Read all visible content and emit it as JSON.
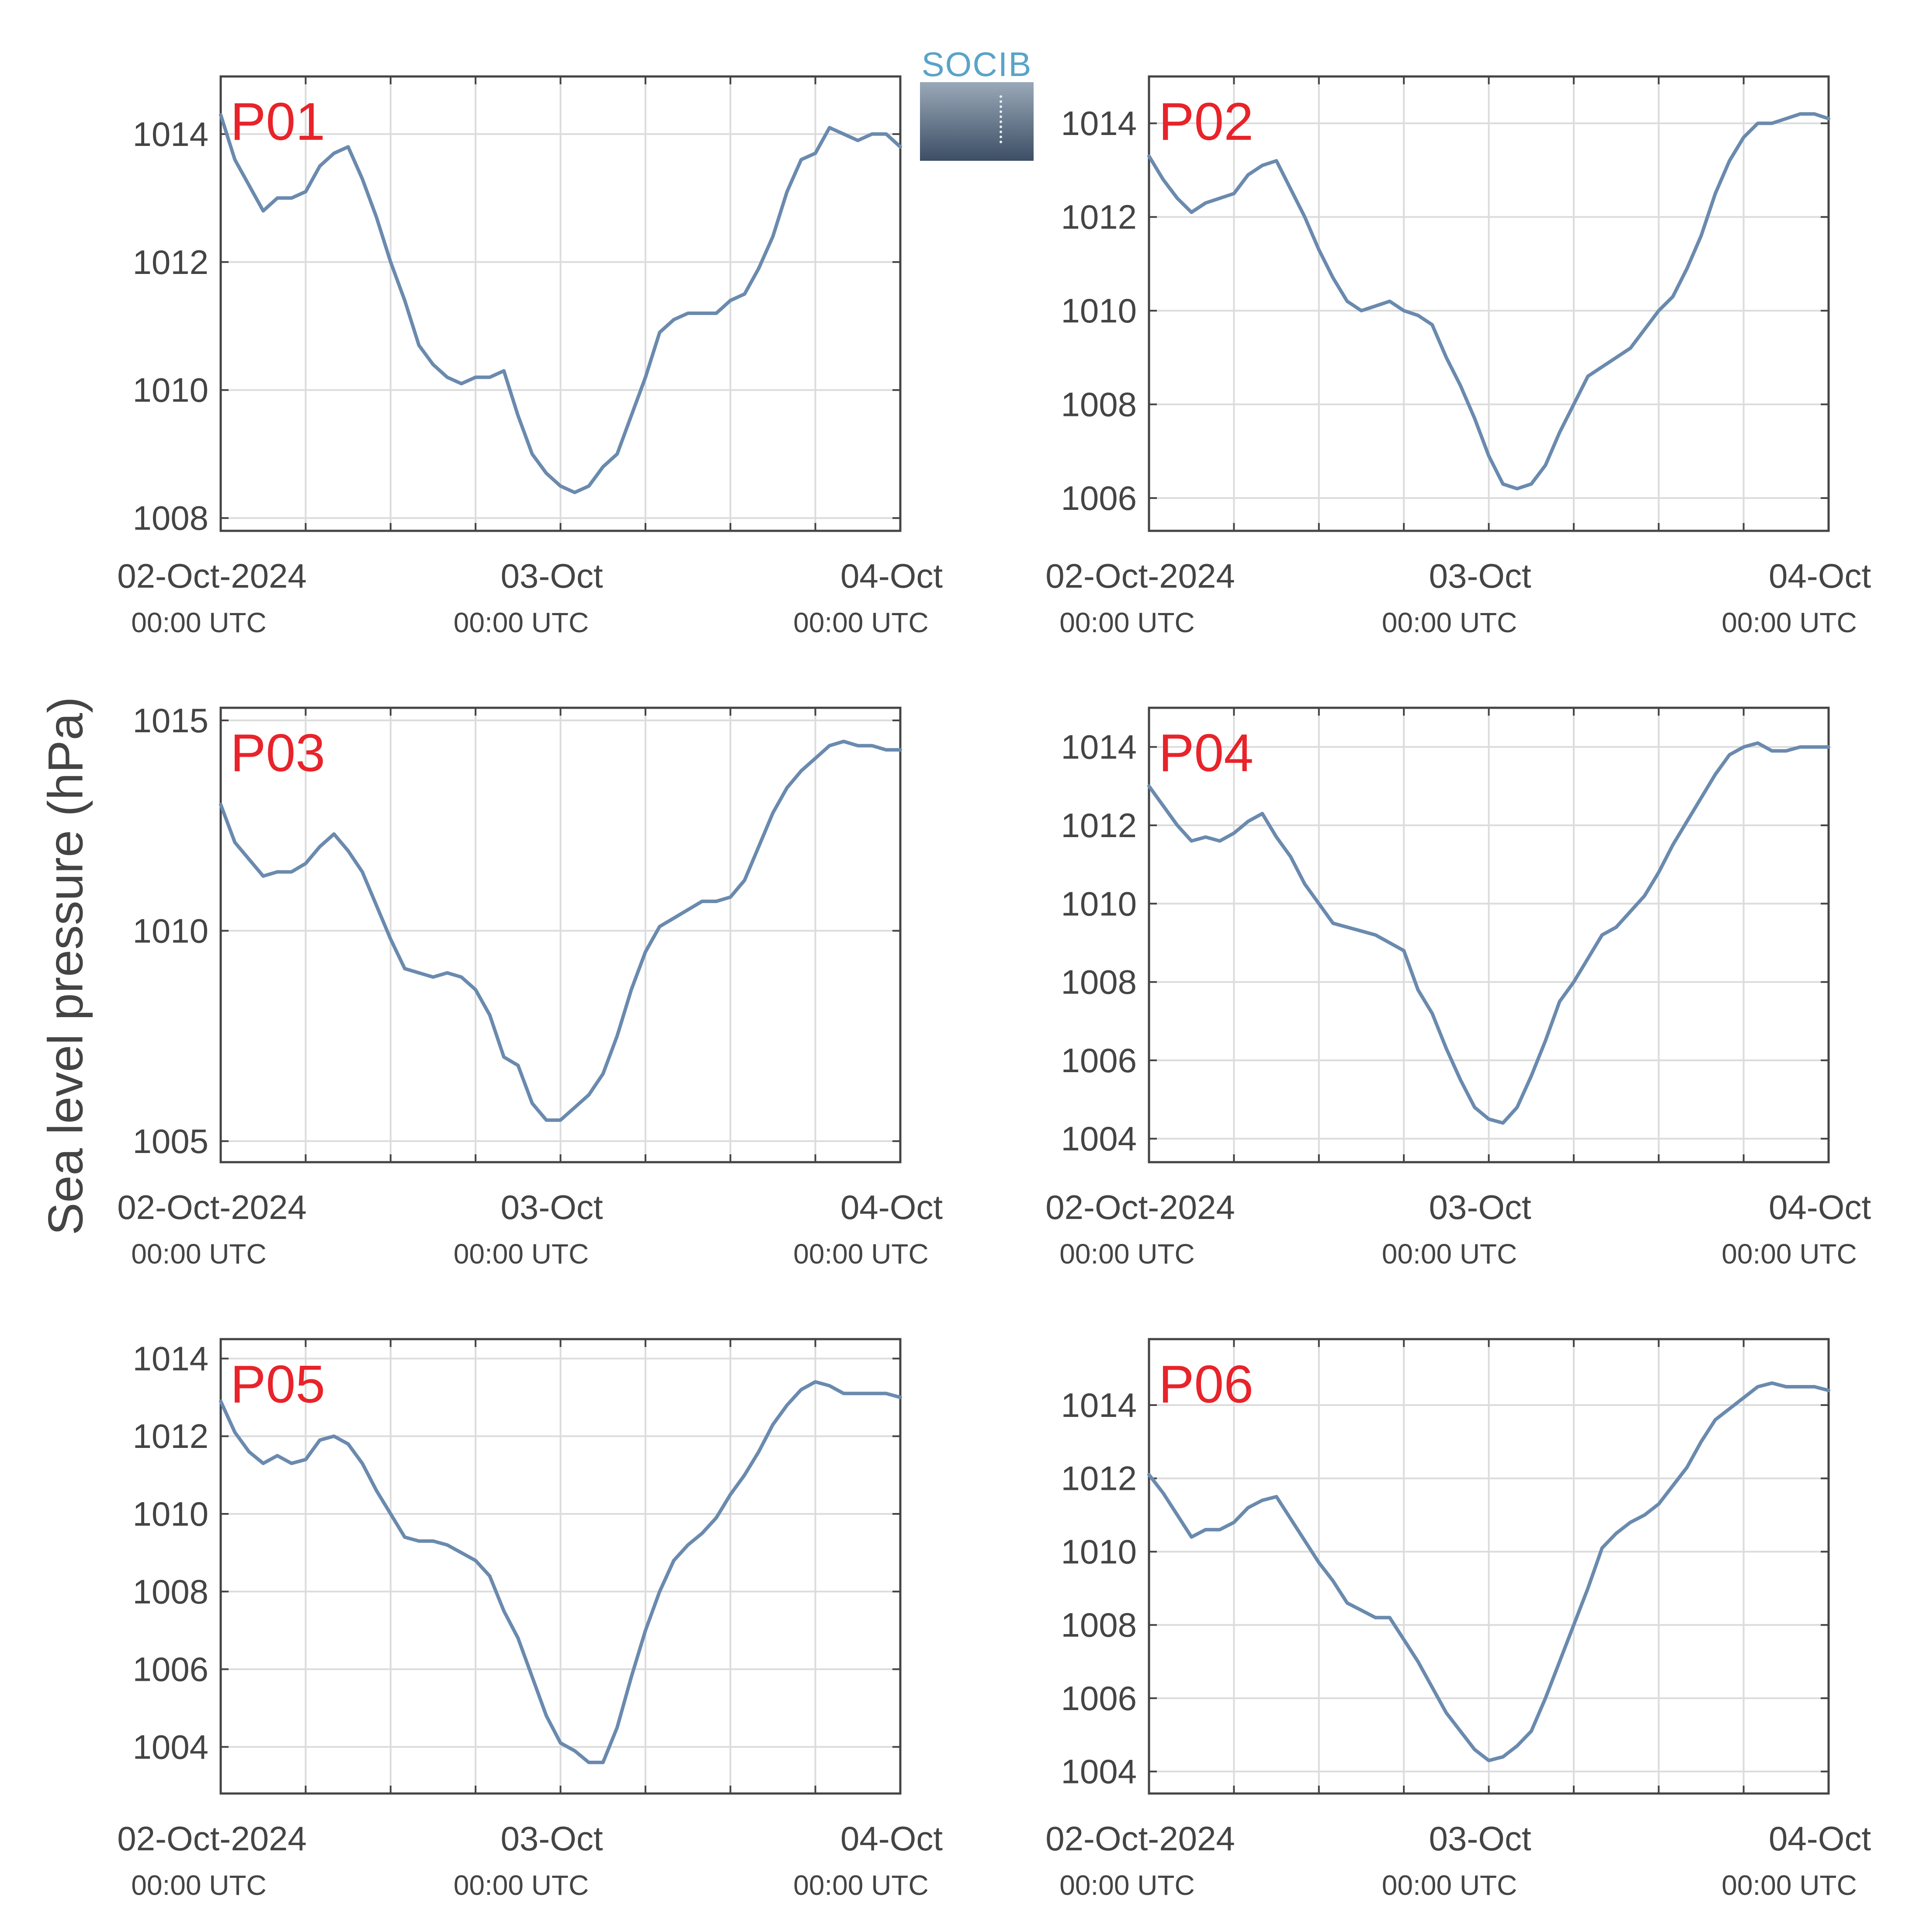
{
  "ylabel": "Sea level pressure (hPa)",
  "logo_text": "SOCIB",
  "colors": {
    "line": "#6a8aae",
    "panel_label": "#e8232a",
    "axis": "#444444",
    "grid": "#dcdcdc",
    "text": "#444444"
  },
  "chart_data": [
    {
      "type": "line",
      "panel_label": "P01",
      "x_tick_labels": [
        [
          "02-Oct-2024",
          "00:00 UTC"
        ],
        [
          "03-Oct",
          "00:00 UTC"
        ],
        [
          "04-Oct",
          "00:00 UTC"
        ]
      ],
      "xlim_hours": [
        0,
        48
      ],
      "ylim": [
        1007.8,
        1014.9
      ],
      "yticks": [
        1008,
        1010,
        1012,
        1014
      ],
      "grid": true,
      "series": [
        {
          "x": [
            0,
            1,
            2,
            3,
            4,
            5,
            6,
            7,
            8,
            9,
            10,
            11,
            12,
            13,
            14,
            15,
            16,
            17,
            18,
            19,
            20,
            21,
            22,
            23,
            24,
            25,
            26,
            27,
            28,
            29,
            30,
            31,
            32,
            33,
            34,
            35,
            36,
            37,
            38,
            39,
            40,
            41,
            42,
            43,
            44,
            45,
            46,
            47,
            48
          ],
          "y": [
            1014.3,
            1013.6,
            1013.2,
            1012.8,
            1013.0,
            1013.0,
            1013.1,
            1013.5,
            1013.7,
            1013.8,
            1013.3,
            1012.7,
            1012.0,
            1011.4,
            1010.7,
            1010.4,
            1010.2,
            1010.1,
            1010.2,
            1010.2,
            1010.3,
            1009.6,
            1009.0,
            1008.7,
            1008.5,
            1008.4,
            1008.5,
            1008.8,
            1009.0,
            1009.6,
            1010.2,
            1010.9,
            1011.1,
            1011.2,
            1011.2,
            1011.2,
            1011.4,
            1011.5,
            1011.9,
            1012.4,
            1013.1,
            1013.6,
            1013.7,
            1014.1,
            1014.0,
            1013.9,
            1014.0,
            1014.0,
            1013.8
          ]
        }
      ]
    },
    {
      "type": "line",
      "panel_label": "P02",
      "x_tick_labels": [
        [
          "02-Oct-2024",
          "00:00 UTC"
        ],
        [
          "03-Oct",
          "00:00 UTC"
        ],
        [
          "04-Oct",
          "00:00 UTC"
        ]
      ],
      "xlim_hours": [
        0,
        48
      ],
      "ylim": [
        1005.3,
        1015.0
      ],
      "yticks": [
        1006,
        1008,
        1010,
        1012,
        1014
      ],
      "grid": true,
      "series": [
        {
          "x": [
            0,
            1,
            2,
            3,
            4,
            5,
            6,
            7,
            8,
            9,
            10,
            11,
            12,
            13,
            14,
            15,
            16,
            17,
            18,
            19,
            20,
            21,
            22,
            23,
            24,
            25,
            26,
            27,
            28,
            29,
            30,
            31,
            32,
            33,
            34,
            35,
            36,
            37,
            38,
            39,
            40,
            41,
            42,
            43,
            44,
            45,
            46,
            47,
            48
          ],
          "y": [
            1013.3,
            1012.8,
            1012.4,
            1012.1,
            1012.3,
            1012.4,
            1012.5,
            1012.9,
            1013.1,
            1013.2,
            1012.6,
            1012.0,
            1011.3,
            1010.7,
            1010.2,
            1010.0,
            1010.1,
            1010.2,
            1010.0,
            1009.9,
            1009.7,
            1009.0,
            1008.4,
            1007.7,
            1006.9,
            1006.3,
            1006.2,
            1006.3,
            1006.7,
            1007.4,
            1008.0,
            1008.6,
            1008.8,
            1009.0,
            1009.2,
            1009.6,
            1010.0,
            1010.3,
            1010.9,
            1011.6,
            1012.5,
            1013.2,
            1013.7,
            1014.0,
            1014.0,
            1014.1,
            1014.2,
            1014.2,
            1014.1
          ]
        }
      ]
    },
    {
      "type": "line",
      "panel_label": "P03",
      "x_tick_labels": [
        [
          "02-Oct-2024",
          "00:00 UTC"
        ],
        [
          "03-Oct",
          "00:00 UTC"
        ],
        [
          "04-Oct",
          "00:00 UTC"
        ]
      ],
      "xlim_hours": [
        0,
        48
      ],
      "ylim": [
        1004.5,
        1015.3
      ],
      "yticks": [
        1005,
        1010,
        1015
      ],
      "grid": true,
      "series": [
        {
          "x": [
            0,
            1,
            2,
            3,
            4,
            5,
            6,
            7,
            8,
            9,
            10,
            11,
            12,
            13,
            14,
            15,
            16,
            17,
            18,
            19,
            20,
            21,
            22,
            23,
            24,
            25,
            26,
            27,
            28,
            29,
            30,
            31,
            32,
            33,
            34,
            35,
            36,
            37,
            38,
            39,
            40,
            41,
            42,
            43,
            44,
            45,
            46,
            47,
            48
          ],
          "y": [
            1013.0,
            1012.1,
            1011.7,
            1011.3,
            1011.4,
            1011.4,
            1011.6,
            1012.0,
            1012.3,
            1011.9,
            1011.4,
            1010.6,
            1009.8,
            1009.1,
            1009.0,
            1008.9,
            1009.0,
            1008.9,
            1008.6,
            1008.0,
            1007.0,
            1006.8,
            1005.9,
            1005.5,
            1005.5,
            1005.8,
            1006.1,
            1006.6,
            1007.5,
            1008.6,
            1009.5,
            1010.1,
            1010.3,
            1010.5,
            1010.7,
            1010.7,
            1010.8,
            1011.2,
            1012.0,
            1012.8,
            1013.4,
            1013.8,
            1014.1,
            1014.4,
            1014.5,
            1014.4,
            1014.4,
            1014.3,
            1014.3
          ]
        }
      ]
    },
    {
      "type": "line",
      "panel_label": "P04",
      "x_tick_labels": [
        [
          "02-Oct-2024",
          "00:00 UTC"
        ],
        [
          "03-Oct",
          "00:00 UTC"
        ],
        [
          "04-Oct",
          "00:00 UTC"
        ]
      ],
      "xlim_hours": [
        0,
        48
      ],
      "ylim": [
        1003.4,
        1015.0
      ],
      "yticks": [
        1004,
        1006,
        1008,
        1010,
        1012,
        1014
      ],
      "grid": true,
      "series": [
        {
          "x": [
            0,
            1,
            2,
            3,
            4,
            5,
            6,
            7,
            8,
            9,
            10,
            11,
            12,
            13,
            14,
            15,
            16,
            17,
            18,
            19,
            20,
            21,
            22,
            23,
            24,
            25,
            26,
            27,
            28,
            29,
            30,
            31,
            32,
            33,
            34,
            35,
            36,
            37,
            38,
            39,
            40,
            41,
            42,
            43,
            44,
            45,
            46,
            47,
            48
          ],
          "y": [
            1013.0,
            1012.5,
            1012.0,
            1011.6,
            1011.7,
            1011.6,
            1011.8,
            1012.1,
            1012.3,
            1011.7,
            1011.2,
            1010.5,
            1010.0,
            1009.5,
            1009.4,
            1009.3,
            1009.2,
            1009.0,
            1008.8,
            1007.8,
            1007.2,
            1006.3,
            1005.5,
            1004.8,
            1004.5,
            1004.4,
            1004.8,
            1005.6,
            1006.5,
            1007.5,
            1008.0,
            1008.6,
            1009.2,
            1009.4,
            1009.8,
            1010.2,
            1010.8,
            1011.5,
            1012.1,
            1012.7,
            1013.3,
            1013.8,
            1014.0,
            1014.1,
            1013.9,
            1013.9,
            1014.0,
            1014.0,
            1014.0
          ]
        }
      ]
    },
    {
      "type": "line",
      "panel_label": "P05",
      "x_tick_labels": [
        [
          "02-Oct-2024",
          "00:00 UTC"
        ],
        [
          "03-Oct",
          "00:00 UTC"
        ],
        [
          "04-Oct",
          "00:00 UTC"
        ]
      ],
      "xlim_hours": [
        0,
        48
      ],
      "ylim": [
        1002.8,
        1014.5
      ],
      "yticks": [
        1004,
        1006,
        1008,
        1010,
        1012,
        1014
      ],
      "grid": true,
      "series": [
        {
          "x": [
            0,
            1,
            2,
            3,
            4,
            5,
            6,
            7,
            8,
            9,
            10,
            11,
            12,
            13,
            14,
            15,
            16,
            17,
            18,
            19,
            20,
            21,
            22,
            23,
            24,
            25,
            26,
            27,
            28,
            29,
            30,
            31,
            32,
            33,
            34,
            35,
            36,
            37,
            38,
            39,
            40,
            41,
            42,
            43,
            44,
            45,
            46,
            47,
            48
          ],
          "y": [
            1012.9,
            1012.1,
            1011.6,
            1011.3,
            1011.5,
            1011.3,
            1011.4,
            1011.9,
            1012.0,
            1011.8,
            1011.3,
            1010.6,
            1010.0,
            1009.4,
            1009.3,
            1009.3,
            1009.2,
            1009.0,
            1008.8,
            1008.4,
            1007.5,
            1006.8,
            1005.8,
            1004.8,
            1004.1,
            1003.9,
            1003.6,
            1003.6,
            1004.5,
            1005.8,
            1007.0,
            1008.0,
            1008.8,
            1009.2,
            1009.5,
            1009.9,
            1010.5,
            1011.0,
            1011.6,
            1012.3,
            1012.8,
            1013.2,
            1013.4,
            1013.3,
            1013.1,
            1013.1,
            1013.1,
            1013.1,
            1013.0
          ]
        }
      ]
    },
    {
      "type": "line",
      "panel_label": "P06",
      "x_tick_labels": [
        [
          "02-Oct-2024",
          "00:00 UTC"
        ],
        [
          "03-Oct",
          "00:00 UTC"
        ],
        [
          "04-Oct",
          "00:00 UTC"
        ]
      ],
      "xlim_hours": [
        0,
        48
      ],
      "ylim": [
        1003.4,
        1015.8
      ],
      "yticks": [
        1004,
        1006,
        1008,
        1010,
        1012,
        1014
      ],
      "grid": true,
      "series": [
        {
          "x": [
            0,
            1,
            2,
            3,
            4,
            5,
            6,
            7,
            8,
            9,
            10,
            11,
            12,
            13,
            14,
            15,
            16,
            17,
            18,
            19,
            20,
            21,
            22,
            23,
            24,
            25,
            26,
            27,
            28,
            29,
            30,
            31,
            32,
            33,
            34,
            35,
            36,
            37,
            38,
            39,
            40,
            41,
            42,
            43,
            44,
            45,
            46,
            47,
            48
          ],
          "y": [
            1012.1,
            1011.6,
            1011.0,
            1010.4,
            1010.6,
            1010.6,
            1010.8,
            1011.2,
            1011.4,
            1011.5,
            1010.9,
            1010.3,
            1009.7,
            1009.2,
            1008.6,
            1008.4,
            1008.2,
            1008.2,
            1007.6,
            1007.0,
            1006.3,
            1005.6,
            1005.1,
            1004.6,
            1004.3,
            1004.4,
            1004.7,
            1005.1,
            1006.0,
            1007.0,
            1008.0,
            1009.0,
            1010.1,
            1010.5,
            1010.8,
            1011.0,
            1011.3,
            1011.8,
            1012.3,
            1013.0,
            1013.6,
            1013.9,
            1014.2,
            1014.5,
            1014.6,
            1014.5,
            1014.5,
            1014.5,
            1014.4
          ]
        }
      ]
    }
  ]
}
